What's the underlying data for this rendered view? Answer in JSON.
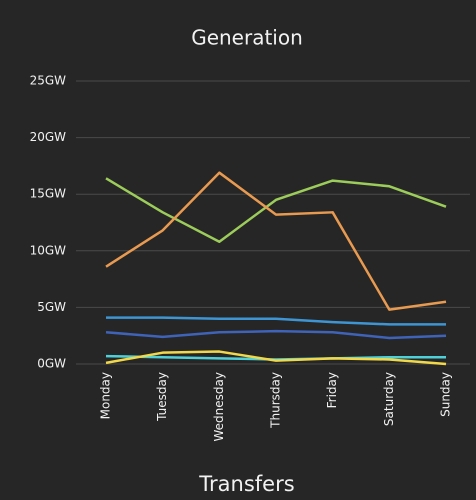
{
  "chart_data": {
    "type": "line",
    "title": "Generation",
    "categories": [
      "Monday",
      "Tuesday",
      "Wednesday",
      "Thursday",
      "Friday",
      "Saturday",
      "Sunday"
    ],
    "series": [
      {
        "color": "#9ccc5a",
        "values": [
          16.4,
          13.4,
          10.8,
          14.5,
          16.2,
          15.7,
          13.9
        ]
      },
      {
        "color": "#e89a50",
        "values": [
          8.6,
          11.8,
          16.9,
          13.2,
          13.4,
          4.8,
          5.5
        ]
      },
      {
        "color": "#3e95d4",
        "values": [
          4.1,
          4.1,
          4.0,
          4.0,
          3.7,
          3.5,
          3.5
        ]
      },
      {
        "color": "#3f63b8",
        "values": [
          2.8,
          2.4,
          2.8,
          2.9,
          2.8,
          2.3,
          2.5
        ]
      },
      {
        "color": "#4fd0d8",
        "values": [
          0.7,
          0.6,
          0.5,
          0.4,
          0.5,
          0.6,
          0.6
        ]
      },
      {
        "color": "#f0d84a",
        "values": [
          0.1,
          1.0,
          1.1,
          0.3,
          0.5,
          0.4,
          0.0
        ]
      }
    ],
    "ylim": [
      0,
      25
    ],
    "yticks": [
      {
        "value": 0,
        "label": "0GW"
      },
      {
        "value": 5,
        "label": "5GW"
      },
      {
        "value": 10,
        "label": "10GW"
      },
      {
        "value": 15,
        "label": "15GW"
      },
      {
        "value": 20,
        "label": "20GW"
      },
      {
        "value": 25,
        "label": "25GW"
      }
    ],
    "grid": true
  },
  "next_section": "Transfers"
}
